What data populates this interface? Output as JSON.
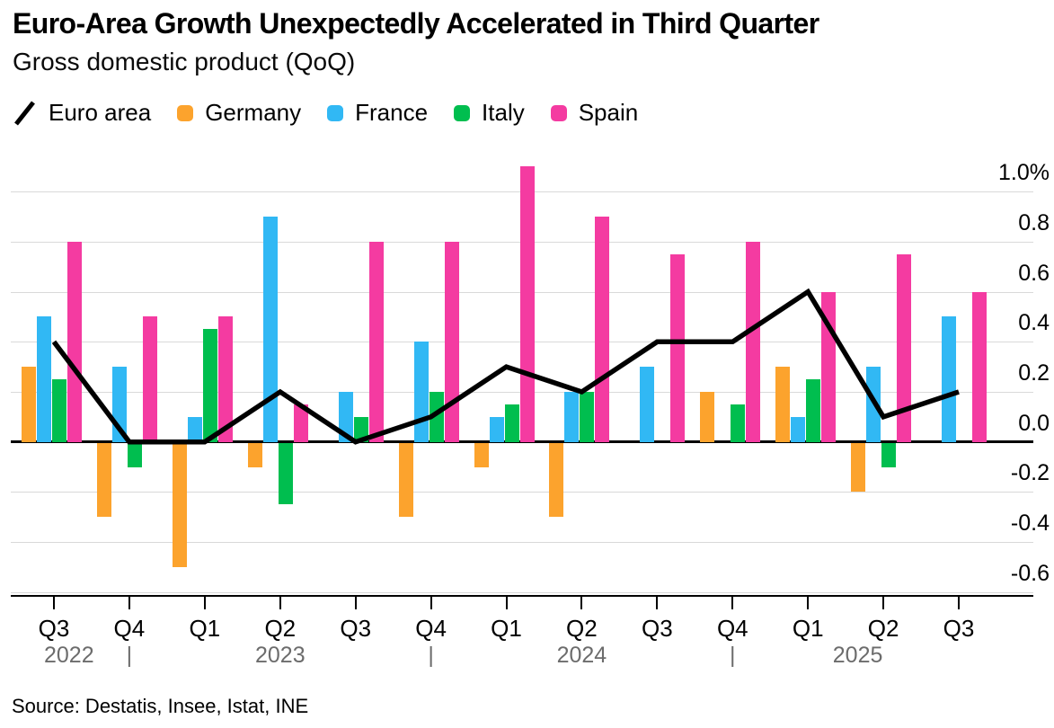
{
  "header": {
    "title": "Euro-Area Growth Unexpectedly Accelerated in Third Quarter",
    "subtitle": "Gross domestic product (QoQ)"
  },
  "footer": {
    "source": "Source: Destatis, Insee, Istat, INE"
  },
  "chart_data": {
    "type": "bar+line",
    "title": "Euro-Area Growth Unexpectedly Accelerated in Third Quarter",
    "subtitle": "Gross domestic product (QoQ)",
    "unit": "%",
    "grid": true,
    "legend_position": "top",
    "categories": [
      "Q3",
      "Q4",
      "Q1",
      "Q2",
      "Q3",
      "Q4",
      "Q1",
      "Q2",
      "Q3",
      "Q4",
      "Q1",
      "Q2",
      "Q3"
    ],
    "year_row": [
      {
        "label": "2022",
        "pos": 0.2
      },
      {
        "label": "|",
        "pos": 1
      },
      {
        "label": "2023",
        "pos": 3
      },
      {
        "label": "|",
        "pos": 5
      },
      {
        "label": "2024",
        "pos": 7
      },
      {
        "label": "|",
        "pos": 9
      },
      {
        "label": "2025",
        "pos": 10.66
      }
    ],
    "y_axis": {
      "ylim": [
        -0.62,
        1.11
      ],
      "ticks": [
        {
          "value": 1.0,
          "label": "1.0%"
        },
        {
          "value": 0.8,
          "label": "0.8"
        },
        {
          "value": 0.6,
          "label": "0.6"
        },
        {
          "value": 0.4,
          "label": "0.4"
        },
        {
          "value": 0.2,
          "label": "0.2"
        },
        {
          "value": 0.0,
          "label": "0.0"
        },
        {
          "value": -0.2,
          "label": "-0.2"
        },
        {
          "value": -0.4,
          "label": "-0.4"
        },
        {
          "value": -0.6,
          "label": "-0.6"
        }
      ]
    },
    "series": [
      {
        "name": "Euro area",
        "type": "line",
        "color": "#000000",
        "values": [
          0.4,
          0.0,
          0.0,
          0.2,
          0.0,
          0.1,
          0.3,
          0.2,
          0.4,
          0.4,
          0.6,
          0.1,
          0.2
        ]
      },
      {
        "name": "Germany",
        "type": "bar",
        "color": "#FCA32D",
        "values": [
          0.3,
          -0.3,
          -0.5,
          -0.1,
          0.0,
          -0.3,
          -0.1,
          -0.3,
          0.0,
          0.2,
          0.3,
          -0.2,
          0.0
        ]
      },
      {
        "name": "France",
        "type": "bar",
        "color": "#31B8F4",
        "values": [
          0.5,
          0.3,
          0.1,
          0.9,
          0.2,
          0.4,
          0.1,
          0.2,
          0.3,
          0.0,
          0.1,
          0.3,
          0.5
        ]
      },
      {
        "name": "Italy",
        "type": "bar",
        "color": "#00BE4F",
        "values": [
          0.25,
          -0.1,
          0.45,
          -0.25,
          0.1,
          0.2,
          0.15,
          0.2,
          0.0,
          0.15,
          0.25,
          -0.1,
          0.0
        ]
      },
      {
        "name": "Spain",
        "type": "bar",
        "color": "#F43BA1",
        "values": [
          0.8,
          0.5,
          0.5,
          0.15,
          0.8,
          0.8,
          1.1,
          0.9,
          0.75,
          0.8,
          0.6,
          0.75,
          0.6
        ]
      }
    ]
  }
}
